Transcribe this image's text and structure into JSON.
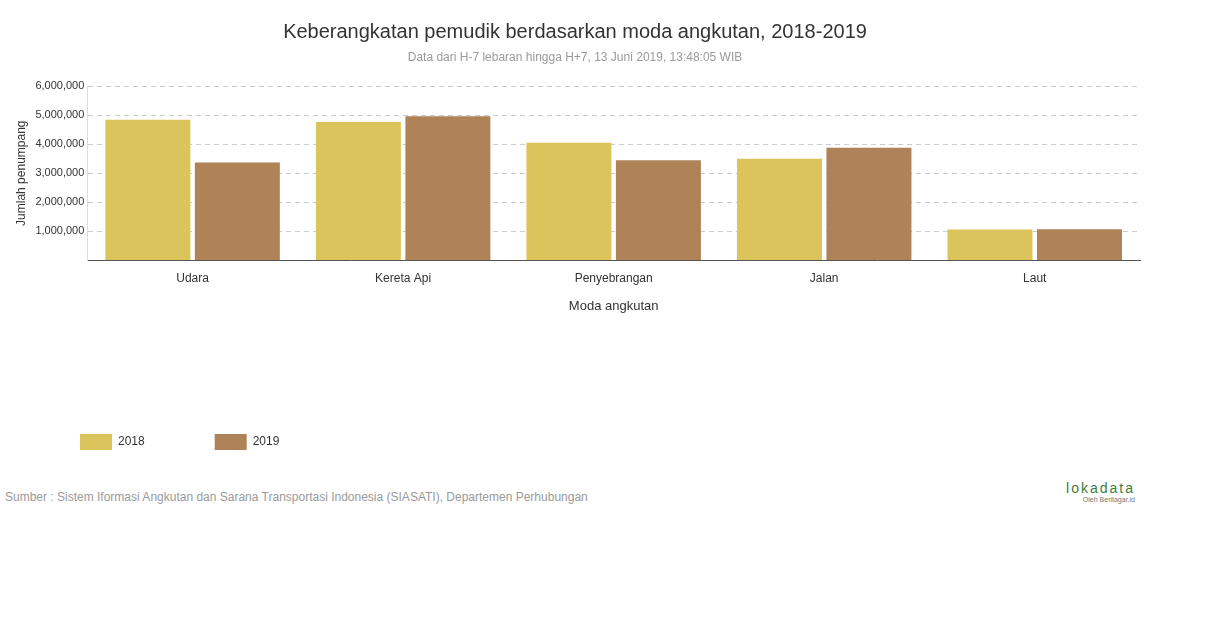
{
  "chart_data": {
    "type": "bar",
    "title": "Keberangkatan pemudik berdasarkan moda angkutan, 2018-2019",
    "subtitle": "Data dari H-7 lebaran hingga H+7, 13 Juni 2019, 13:48:05 WIB",
    "x_label": "Moda angkutan",
    "y_label": "Jumlah penumpang",
    "categories": [
      "Udara",
      "Kereta Api",
      "Penyebrangan",
      "Jalan",
      "Laut"
    ],
    "series": [
      {
        "name": "2018",
        "color": "#dcc45c",
        "values": [
          4850000,
          4770000,
          4050000,
          3500000,
          1050000
        ]
      },
      {
        "name": "2019",
        "color": "#b08258",
        "values": [
          3370000,
          4970000,
          3450000,
          3880000,
          1060000
        ]
      }
    ],
    "ylim": [
      0,
      6000000
    ],
    "yticks": [
      {
        "value": 1000000,
        "label": "1,000,000"
      },
      {
        "value": 2000000,
        "label": "2,000,000"
      },
      {
        "value": 3000000,
        "label": "3,000,000"
      },
      {
        "value": 4000000,
        "label": "4,000,000"
      },
      {
        "value": 5000000,
        "label": "5,000,000"
      },
      {
        "value": 6000000,
        "label": "6,000,000"
      }
    ],
    "grid": true,
    "legend": "bottom-left"
  },
  "source": "Sumber : Sistem Iformasi Angkutan dan Sarana Transportasi Indonesia (SIASATI), Departemen Perhubungan",
  "logo": {
    "text": "lokadata",
    "byline": "Oleh Beritagar.id"
  }
}
